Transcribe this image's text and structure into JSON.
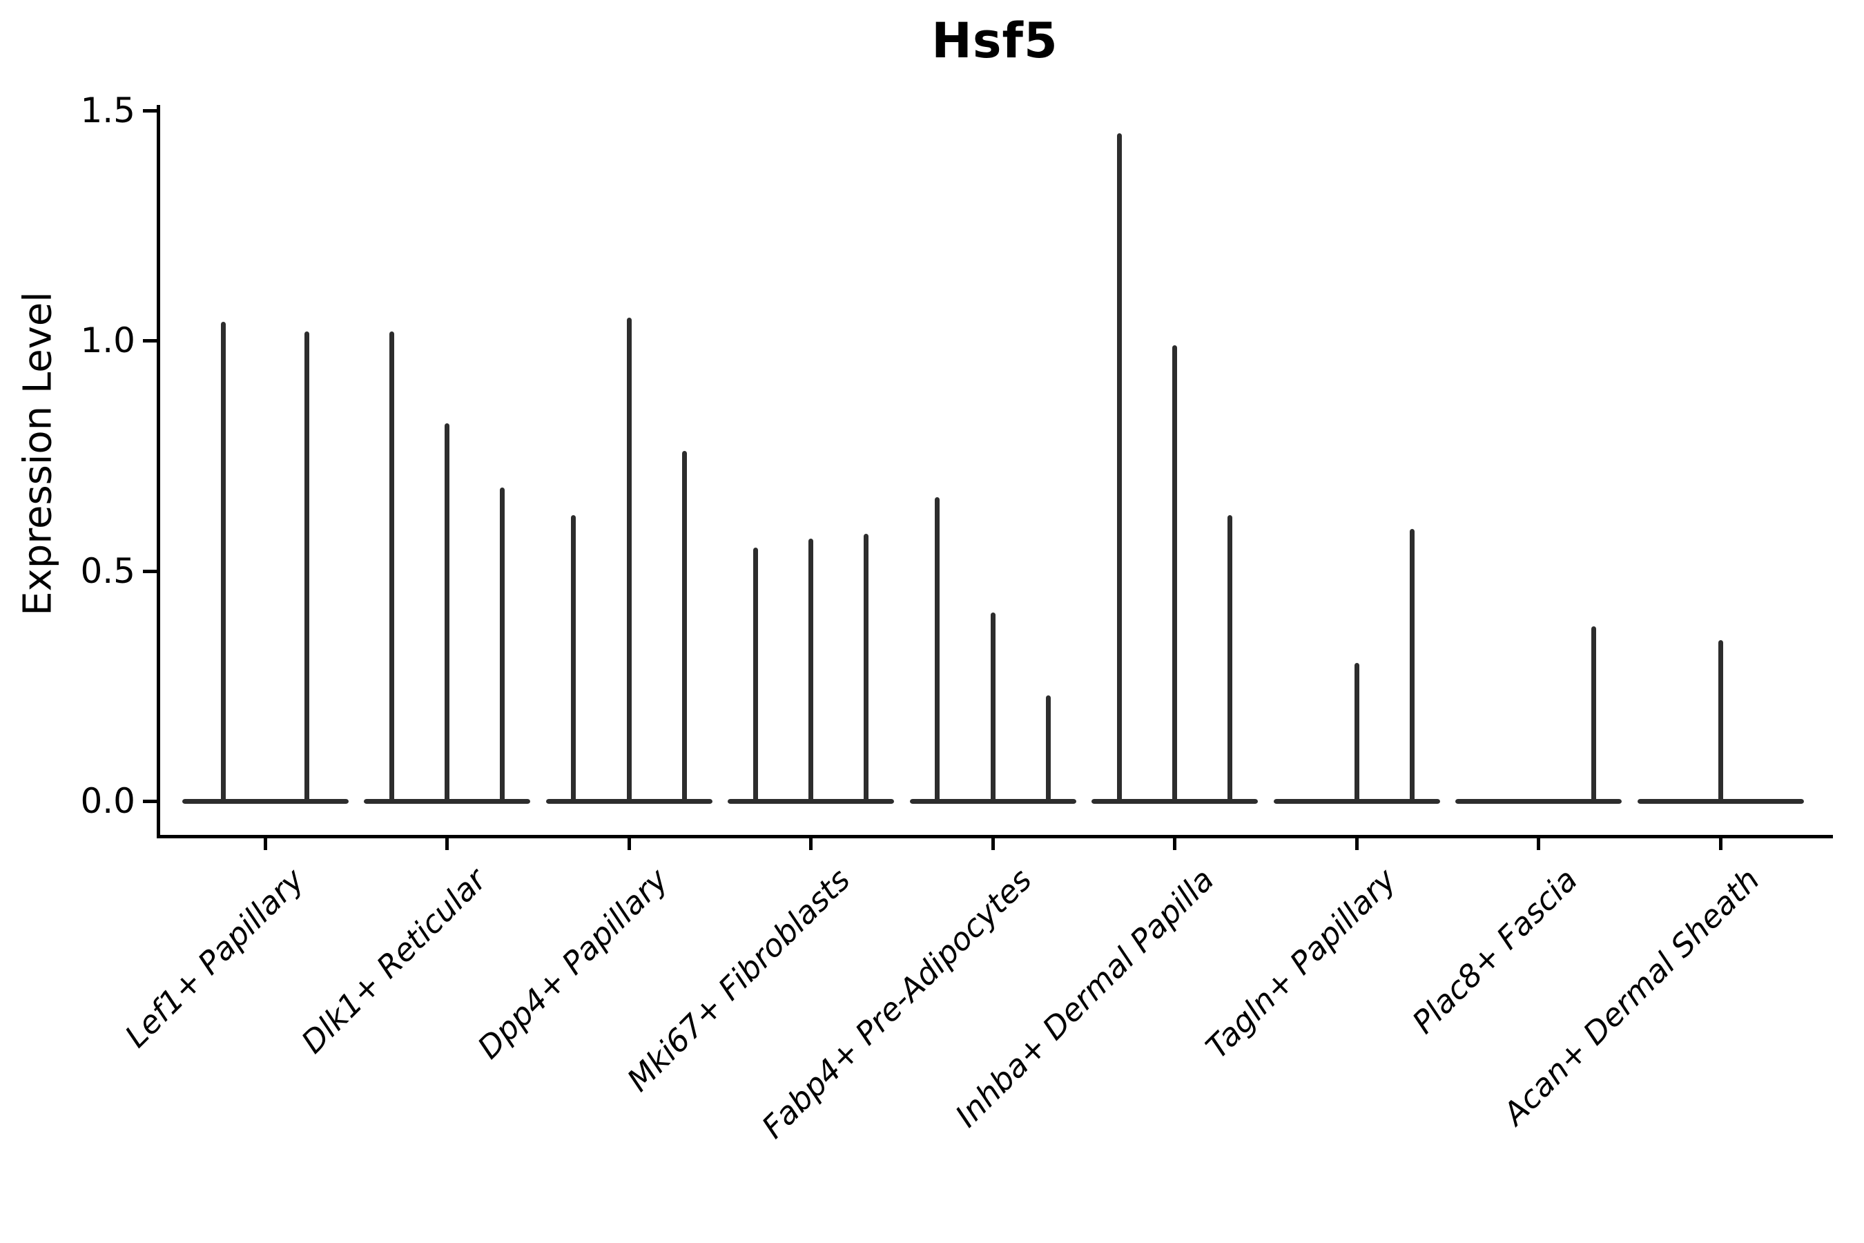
{
  "chart_data": {
    "type": "violin",
    "title": "Hsf5",
    "xlabel": "",
    "ylabel": "Expression Level",
    "ylim": [
      0,
      1.5
    ],
    "yticks": [
      "0.0",
      "0.5",
      "1.0",
      "1.5"
    ],
    "ytick_values": [
      0.0,
      0.5,
      1.0,
      1.5
    ],
    "grid": false,
    "legend": "none",
    "violin_style": "each violin is a flat base at expression 0 with a thin vertical spike up to the max expression value; violins within a category share a merged flat baseline",
    "line_color": "#2d2d2d",
    "axis_color": "#000000",
    "categories": [
      "Lef1+ Papillary",
      "Dlk1+ Reticular",
      "Dpp4+ Papillary",
      "Mki67+ Fibroblasts",
      "Fabp4+ Pre-Adipocytes",
      "Inhba+ Dermal Papilla",
      "Tagln+ Papillary",
      "Plac8+ Fascia",
      "Acan+ Dermal Sheath"
    ],
    "groups": [
      {
        "category": "Lef1+ Papillary",
        "slots": 2,
        "violins": [
          {
            "slot": 1,
            "peak": 1.04
          },
          {
            "slot": 2,
            "peak": 1.02
          }
        ]
      },
      {
        "category": "Dlk1+ Reticular",
        "slots": 3,
        "violins": [
          {
            "slot": 1,
            "peak": 1.02
          },
          {
            "slot": 2,
            "peak": 0.82
          },
          {
            "slot": 3,
            "peak": 0.68
          }
        ]
      },
      {
        "category": "Dpp4+ Papillary",
        "slots": 3,
        "violins": [
          {
            "slot": 1,
            "peak": 0.62
          },
          {
            "slot": 2,
            "peak": 1.05
          },
          {
            "slot": 3,
            "peak": 0.76
          }
        ]
      },
      {
        "category": "Mki67+ Fibroblasts",
        "slots": 3,
        "violins": [
          {
            "slot": 1,
            "peak": 0.55
          },
          {
            "slot": 2,
            "peak": 0.57
          },
          {
            "slot": 3,
            "peak": 0.58
          }
        ]
      },
      {
        "category": "Fabp4+ Pre-Adipocytes",
        "slots": 3,
        "violins": [
          {
            "slot": 1,
            "peak": 0.66
          },
          {
            "slot": 2,
            "peak": 0.41
          },
          {
            "slot": 3,
            "peak": 0.23
          }
        ]
      },
      {
        "category": "Inhba+ Dermal Papilla",
        "slots": 3,
        "violins": [
          {
            "slot": 1,
            "peak": 1.45
          },
          {
            "slot": 2,
            "peak": 0.99
          },
          {
            "slot": 3,
            "peak": 0.62
          }
        ]
      },
      {
        "category": "Tagln+ Papillary",
        "slots": 3,
        "violins": [
          {
            "slot": 2,
            "peak": 0.3
          },
          {
            "slot": 3,
            "peak": 0.59
          }
        ]
      },
      {
        "category": "Plac8+ Fascia",
        "slots": 3,
        "violins": [
          {
            "slot": 3,
            "peak": 0.38
          }
        ]
      },
      {
        "category": "Acan+ Dermal Sheath",
        "slots": 3,
        "violins": [
          {
            "slot": 2,
            "peak": 0.35
          }
        ]
      }
    ]
  }
}
